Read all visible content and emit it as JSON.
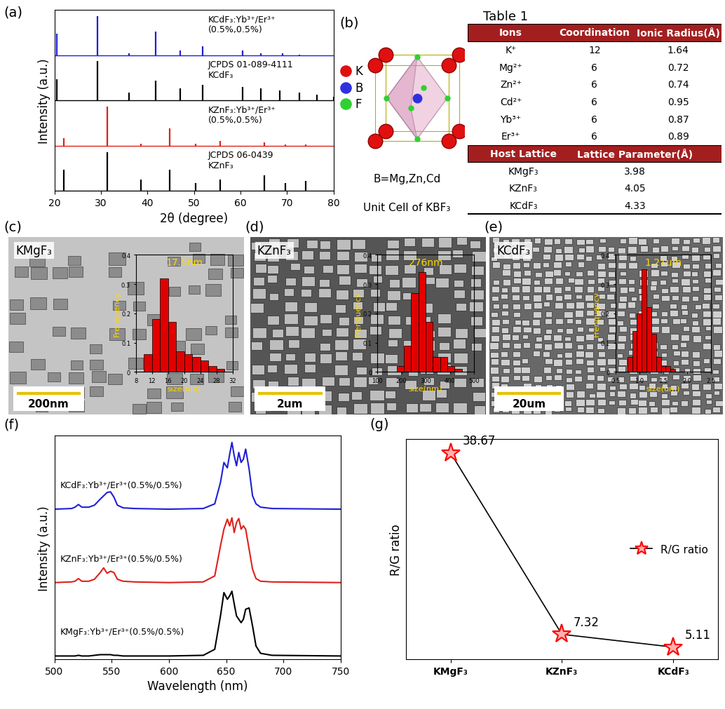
{
  "chart_data": [
    {
      "panel": "(a)",
      "type": "stick",
      "xlabel": "2θ (degree)",
      "ylabel": "Intensity (a.u.)",
      "xlim": [
        20,
        80
      ],
      "xticks": [
        20,
        30,
        40,
        50,
        60,
        70,
        80
      ],
      "tick_labels": "x",
      "series": [
        {
          "name": "KCdF₃:Yb³⁺/Er³⁺\n(0.5%,0.5%)",
          "color": "#1f1fd6",
          "line_style": "solid",
          "x": [
            20.5,
            29.2,
            36,
            41.8,
            47,
            51.8,
            60.5,
            64.4,
            69,
            72.6
          ],
          "values": [
            0.55,
            1.0,
            0.05,
            0.6,
            0.12,
            0.22,
            0.12,
            0.05,
            0.04,
            0.02
          ]
        },
        {
          "name": "JCPDS 01-089-4111\nKCdF₃",
          "color": "#000000",
          "line_style": "solid",
          "x": [
            20.5,
            29.2,
            36,
            41.8,
            47,
            51.8,
            60.5,
            64.4,
            68.5,
            72.6,
            76.5,
            80
          ],
          "values": [
            0.55,
            1.0,
            0.2,
            0.5,
            0.3,
            0.4,
            0.35,
            0.3,
            0.25,
            0.2,
            0.15,
            0.1
          ]
        },
        {
          "name": "KZnF₃:Yb³⁺/Er³⁺\n(0.5%,0.5%)",
          "color": "#e0201a",
          "line_style": "solid",
          "x": [
            22,
            31.3,
            38.6,
            44.8,
            50.4,
            55.6,
            65.2,
            69.6,
            74.1
          ],
          "values": [
            0.2,
            1.0,
            0.05,
            0.45,
            0.05,
            0.12,
            0.08,
            0.03,
            0.03
          ]
        },
        {
          "name": "JCPDS 06-0439\nKZnF₃",
          "color": "#000000",
          "line_style": "solid",
          "x": [
            22,
            31.3,
            38.6,
            44.8,
            50.4,
            55.6,
            65.2,
            69.6,
            74.1
          ],
          "values": [
            0.55,
            1.0,
            0.3,
            0.55,
            0.2,
            0.3,
            0.4,
            0.2,
            0.25
          ]
        }
      ]
    },
    {
      "panel": "(c)",
      "type": "histogram",
      "sample": "KMgF₃",
      "scale_bar": "200nm",
      "annotation": "17.5nm",
      "xlabel": "size(nm)",
      "ylabel": "Frenquency",
      "color": "#e00000",
      "bins": [
        10,
        12,
        14,
        16,
        18,
        20,
        22,
        24,
        26,
        28,
        30
      ],
      "counts": [
        0.06,
        0.18,
        0.32,
        0.17,
        0.07,
        0.06,
        0.05,
        0.04,
        0.02,
        0.01
      ],
      "xlim": [
        8,
        32
      ],
      "xticks": [
        8,
        12,
        16,
        20,
        24,
        28,
        32
      ],
      "ylim": [
        0,
        0.4
      ],
      "yticks": [
        0,
        0.1,
        0.2,
        0.3,
        0.4
      ]
    },
    {
      "panel": "(d)",
      "type": "histogram",
      "sample": "KZnF₃",
      "scale_bar": "2um",
      "annotation": "276nm",
      "xlabel": "size(nm)",
      "ylabel": "Frenquency",
      "color": "#e00000",
      "bins": [
        180,
        210,
        240,
        270,
        300,
        330,
        360,
        390,
        420,
        450
      ],
      "counts": [
        0.02,
        0.09,
        0.27,
        0.34,
        0.17,
        0.05,
        0.05,
        0.02,
        0.01
      ],
      "xlim": [
        100,
        500
      ],
      "xticks": [
        100,
        200,
        300,
        400,
        500
      ],
      "ylim": [
        0,
        0.4
      ],
      "yticks": [
        0,
        0.1,
        0.2,
        0.3,
        0.4
      ]
    },
    {
      "panel": "(e)",
      "type": "histogram",
      "sample": "KCdF₃",
      "scale_bar": "20um",
      "annotation": "1.21um",
      "xlabel": "size(um)",
      "ylabel": "Frenquency",
      "color": "#e00000",
      "bins": [
        0.75,
        0.85,
        0.95,
        1.05,
        1.15,
        1.25,
        1.35,
        1.45,
        1.55,
        1.65,
        1.75
      ],
      "counts": [
        0.05,
        0.14,
        0.2,
        0.35,
        0.22,
        0.13,
        0.05,
        0.02,
        0.02,
        0.01
      ],
      "xlim": [
        0.5,
        2.5
      ],
      "xticks": [
        0.5,
        1.0,
        1.5,
        2.0,
        2.5
      ],
      "ylim": [
        0,
        0.4
      ],
      "yticks": [
        0,
        0.1,
        0.2,
        0.3,
        0.4
      ]
    },
    {
      "panel": "(f)",
      "type": "line",
      "xlabel": "Wavelength (nm)",
      "ylabel": "Intensity (a.u.)",
      "xlim": [
        500,
        750
      ],
      "xticks": [
        500,
        550,
        600,
        650,
        700,
        750
      ],
      "tick_labels": "x",
      "x": [
        500,
        515,
        518,
        521,
        524,
        530,
        535,
        540,
        543,
        546,
        549,
        552,
        555,
        560,
        570,
        600,
        630,
        640,
        645,
        648,
        651,
        653,
        655,
        657,
        659,
        661,
        663,
        665,
        667,
        670,
        673,
        676,
        680,
        690,
        750
      ],
      "series": [
        {
          "name": "KCdF₃:Yb³⁺/Er³⁺(0.5%/0.5%)",
          "color": "#1f1fd6",
          "values": [
            0,
            0.01,
            0.03,
            0.07,
            0.03,
            0.03,
            0.06,
            0.15,
            0.2,
            0.25,
            0.26,
            0.18,
            0.06,
            0.02,
            0.01,
            0,
            0.01,
            0.08,
            0.4,
            0.7,
            0.62,
            0.82,
            1.0,
            0.8,
            0.65,
            0.85,
            0.7,
            0.75,
            0.9,
            0.6,
            0.2,
            0.08,
            0.03,
            0.01,
            0
          ]
        },
        {
          "name": "KZnF₃:Yb³⁺/Er³⁺(0.5%/0.5%)",
          "color": "#e0201a",
          "values": [
            0,
            0.01,
            0.02,
            0.06,
            0.02,
            0.02,
            0.05,
            0.15,
            0.22,
            0.14,
            0.17,
            0.15,
            0.05,
            0.02,
            0.01,
            0,
            0.01,
            0.1,
            0.55,
            0.8,
            0.95,
            0.85,
            0.97,
            0.75,
            0.9,
            0.96,
            0.8,
            0.85,
            0.8,
            0.5,
            0.2,
            0.06,
            0.02,
            0.01,
            0
          ]
        },
        {
          "name": "KMgF₃:Yb³⁺/Er³⁺(0.5%/0.5%)",
          "color": "#000000",
          "values": [
            0,
            0,
            0,
            0.01,
            0,
            0,
            0.01,
            0.02,
            0.02,
            0.02,
            0.02,
            0.01,
            0.01,
            0,
            0,
            0,
            0.01,
            0.1,
            0.6,
            0.95,
            0.85,
            0.9,
            0.97,
            0.78,
            0.6,
            0.55,
            0.5,
            0.55,
            0.7,
            0.72,
            0.45,
            0.15,
            0.04,
            0.01,
            0
          ]
        }
      ]
    },
    {
      "panel": "(g)",
      "type": "line",
      "ylabel": "R/G ratio",
      "categories": [
        "KMgF₃",
        "KZnF₃",
        "KCdF₃"
      ],
      "ylim": [
        3,
        41
      ],
      "tick_labels": "x",
      "legend": "center right",
      "data_labels": true,
      "series": [
        {
          "name": "R/G ratio",
          "color": "#ff0000",
          "marker": "star",
          "values": [
            38.67,
            7.32,
            5.11
          ]
        }
      ]
    }
  ],
  "diagram": {
    "panel": "(b)",
    "legend": [
      "K",
      "B",
      "F"
    ],
    "note": "B=Mg,Zn,Cd",
    "caption": "Unit Cell of KBF₃"
  },
  "table": {
    "title": "Table 1",
    "ions": {
      "header": [
        "Ions",
        "Coordination",
        "Ionic Radius(Å)"
      ],
      "rows": [
        [
          "K⁺",
          12,
          1.64
        ],
        [
          "Mg²⁺",
          6,
          0.72
        ],
        [
          "Zn²⁺",
          6,
          0.74
        ],
        [
          "Cd²⁺",
          6,
          0.95
        ],
        [
          "Yb³⁺",
          6,
          0.87
        ],
        [
          "Er³⁺",
          6,
          0.89
        ]
      ]
    },
    "lattice": {
      "header": [
        "Host Lattice",
        "Lattice Parameter(Å)"
      ],
      "rows": [
        [
          "KMgF₃",
          3.98
        ],
        [
          "KZnF₃",
          4.05
        ],
        [
          "KCdF₃",
          4.33
        ]
      ]
    }
  }
}
